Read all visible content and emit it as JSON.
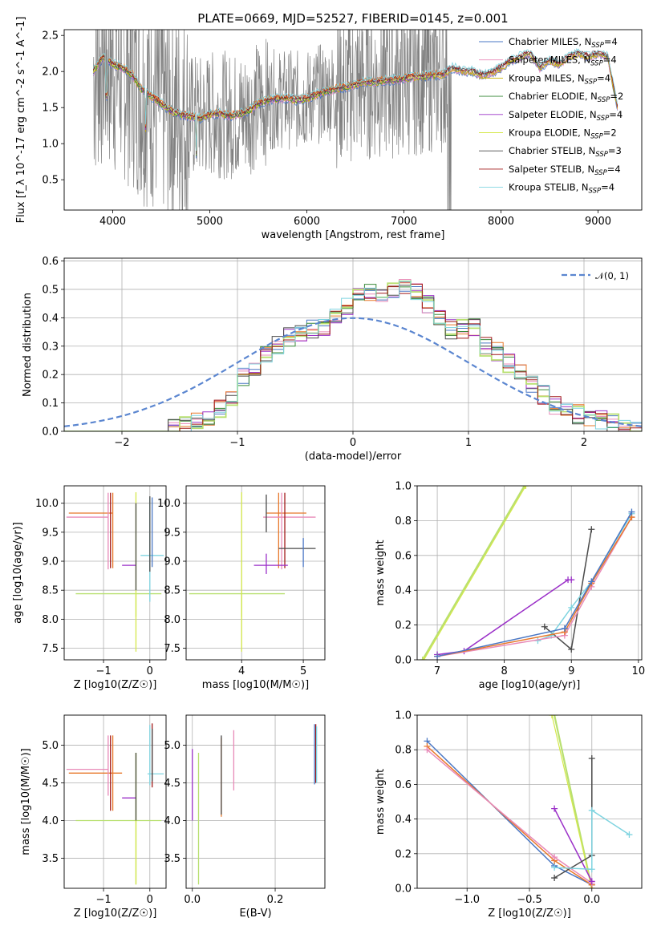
{
  "title": "PLATE=0669, MJD=52527, FIBERID=0145, z=0.001",
  "colors": {
    "Chabrier MILES": "#4a77c4",
    "Salpeter MILES": "#e88ab8",
    "Kroupa MILES": "#c8b400",
    "Chabrier ELODIE": "#3a8a3a",
    "Salpeter ELODIE": "#9b30c8",
    "Kroupa ELODIE": "#d4e84a",
    "Chabrier STELIB": "#4a4a4a",
    "Salpeter STELIB": "#a01818",
    "Kroupa STELIB": "#7fd4e0",
    "data": "#808080",
    "orange": "#e8782a",
    "lime": "#b8e070",
    "gaussian": "#5b86d0"
  },
  "chart_data": [
    {
      "id": "spectrum",
      "type": "line",
      "title": "PLATE=0669, MJD=52527, FIBERID=0145, z=0.001",
      "xlabel": "wavelength [Angstrom, rest frame]",
      "ylabel": "Flux [f_λ 10^-17 erg cm^-2 s^-1 A^-1]",
      "xlim": [
        3500,
        9450
      ],
      "ylim": [
        0.08,
        2.58
      ],
      "xticks": [
        "4000",
        "5000",
        "6000",
        "7000",
        "8000",
        "9000"
      ],
      "yticks": [
        "0.5",
        "1.0",
        "1.5",
        "2.0",
        "2.5"
      ],
      "legend_position": "top-right",
      "legend": [
        {
          "label": "Chabrier MILES, N",
          "sub": "SSP",
          "tail": "=4"
        },
        {
          "label": "Salpeter MILES, N",
          "sub": "SSP",
          "tail": "=4"
        },
        {
          "label": "Kroupa MILES, N",
          "sub": "SSP",
          "tail": "=4"
        },
        {
          "label": "Chabrier ELODIE, N",
          "sub": "SSP",
          "tail": "=2"
        },
        {
          "label": "Salpeter ELODIE, N",
          "sub": "SSP",
          "tail": "=4"
        },
        {
          "label": "Kroupa ELODIE, N",
          "sub": "SSP",
          "tail": "=2"
        },
        {
          "label": "Chabrier STELIB, N",
          "sub": "SSP",
          "tail": "=3"
        },
        {
          "label": "Salpeter STELIB, N",
          "sub": "SSP",
          "tail": "=4"
        },
        {
          "label": "Kroupa STELIB, N",
          "sub": "SSP",
          "tail": "=4"
        }
      ],
      "model_x": [
        3800,
        3900,
        4000,
        4100,
        4200,
        4300,
        4400,
        4500,
        4600,
        4700,
        4800,
        4900,
        5000,
        5100,
        5200,
        5300,
        5400,
        5500,
        5600,
        5700,
        5800,
        5900,
        6000,
        6100,
        6200,
        6300,
        6400,
        6500,
        6600,
        6700,
        6800,
        6900,
        7000,
        7100,
        7200,
        7300,
        7400,
        7500,
        7600,
        7700,
        7800,
        7900,
        8000,
        8100,
        8200,
        8300,
        8400,
        8500,
        8600,
        8700,
        8800,
        8900,
        9000,
        9100,
        9200
      ],
      "model_y": [
        2.0,
        2.2,
        2.1,
        2.05,
        1.95,
        1.75,
        1.65,
        1.55,
        1.45,
        1.4,
        1.38,
        1.35,
        1.4,
        1.42,
        1.38,
        1.4,
        1.45,
        1.55,
        1.6,
        1.62,
        1.62,
        1.6,
        1.62,
        1.68,
        1.72,
        1.75,
        1.78,
        1.82,
        1.85,
        1.85,
        1.87,
        1.88,
        1.9,
        1.92,
        1.93,
        1.95,
        1.95,
        2.05,
        2.0,
        2.0,
        1.95,
        1.98,
        2.05,
        2.15,
        2.2,
        2.25,
        2.05,
        2.15,
        2.1,
        2.2,
        2.25,
        2.2,
        2.25,
        2.2,
        1.5
      ]
    },
    {
      "id": "residuals",
      "type": "histogram",
      "xlabel": "(data-model)/error",
      "ylabel": "Normed distribution",
      "xlim": [
        -2.5,
        2.5
      ],
      "ylim": [
        0,
        0.61
      ],
      "xticks": [
        "−2",
        "−1",
        "0",
        "1",
        "2"
      ],
      "yticks": [
        "0.0",
        "0.1",
        "0.2",
        "0.3",
        "0.4",
        "0.5",
        "0.6"
      ],
      "legend": "𝒩(0, 1)",
      "bin_width": 0.1,
      "bin_start": -2.5,
      "values": [
        0,
        0,
        0,
        0,
        0,
        0,
        0,
        0,
        0,
        0.01,
        0.02,
        0.03,
        0.05,
        0.08,
        0.12,
        0.19,
        0.23,
        0.27,
        0.3,
        0.33,
        0.34,
        0.36,
        0.37,
        0.4,
        0.44,
        0.47,
        0.49,
        0.48,
        0.5,
        0.52,
        0.49,
        0.45,
        0.41,
        0.36,
        0.36,
        0.37,
        0.3,
        0.28,
        0.24,
        0.21,
        0.17,
        0.13,
        0.09,
        0.07,
        0.06,
        0.05,
        0.04,
        0.03,
        0.02,
        0.01
      ]
    },
    {
      "id": "age-vs-Z",
      "type": "scatter",
      "xlabel": "Z [log10(Z/Z☉)]",
      "ylabel": "age [log10(age/yr)]",
      "xlim": [
        -1.85,
        0.35
      ],
      "ylim": [
        7.3,
        10.3
      ],
      "xticks": [
        "−1",
        "0"
      ],
      "yticks": [
        "7.5",
        "8.0",
        "8.5",
        "9.0",
        "9.5",
        "10.0"
      ]
    },
    {
      "id": "age-vs-mass",
      "type": "scatter",
      "xlabel": "mass [log10(M/M☉)]",
      "xlim": [
        3.1,
        5.35
      ],
      "ylim": [
        7.3,
        10.3
      ],
      "xticks": [
        "4",
        "5"
      ],
      "yticks": [
        "7.5",
        "8.0",
        "8.5",
        "9.0",
        "9.5",
        "10.0"
      ]
    },
    {
      "id": "massweight-vs-age",
      "type": "line",
      "xlabel": "age [log10(age/yr)]",
      "ylabel": "mass weight",
      "xlim": [
        6.7,
        10.05
      ],
      "ylim": [
        0,
        1
      ],
      "xticks": [
        "7",
        "8",
        "9",
        "10"
      ],
      "yticks": [
        "0.0",
        "0.2",
        "0.4",
        "0.6",
        "0.8",
        "1.0"
      ]
    },
    {
      "id": "mass-vs-Z",
      "type": "scatter",
      "xlabel": "Z [log10(Z/Z☉)]",
      "ylabel": "mass [log10(M/M☉)]",
      "xlim": [
        -1.85,
        0.35
      ],
      "ylim": [
        3.1,
        5.4
      ],
      "xticks": [
        "−1",
        "0"
      ],
      "yticks": [
        "3.5",
        "4.0",
        "4.5",
        "5.0"
      ]
    },
    {
      "id": "mass-vs-EBV",
      "type": "scatter",
      "xlabel": "E(B-V)",
      "xlim": [
        -0.015,
        0.32
      ],
      "ylim": [
        3.1,
        5.4
      ],
      "xticks": [
        "0.0",
        "0.2"
      ],
      "yticks": [
        "3.5",
        "4.0",
        "4.5",
        "5.0"
      ]
    },
    {
      "id": "massweight-vs-Z",
      "type": "line",
      "xlabel": "Z [log10(Z/Z☉)]",
      "ylabel": "mass weight",
      "xlim": [
        -1.4,
        0.4
      ],
      "ylim": [
        0,
        1
      ],
      "xticks": [
        "−1.0",
        "−0.5",
        "0.0"
      ],
      "yticks": [
        "0.0",
        "0.2",
        "0.4",
        "0.6",
        "0.8",
        "1.0"
      ]
    }
  ]
}
